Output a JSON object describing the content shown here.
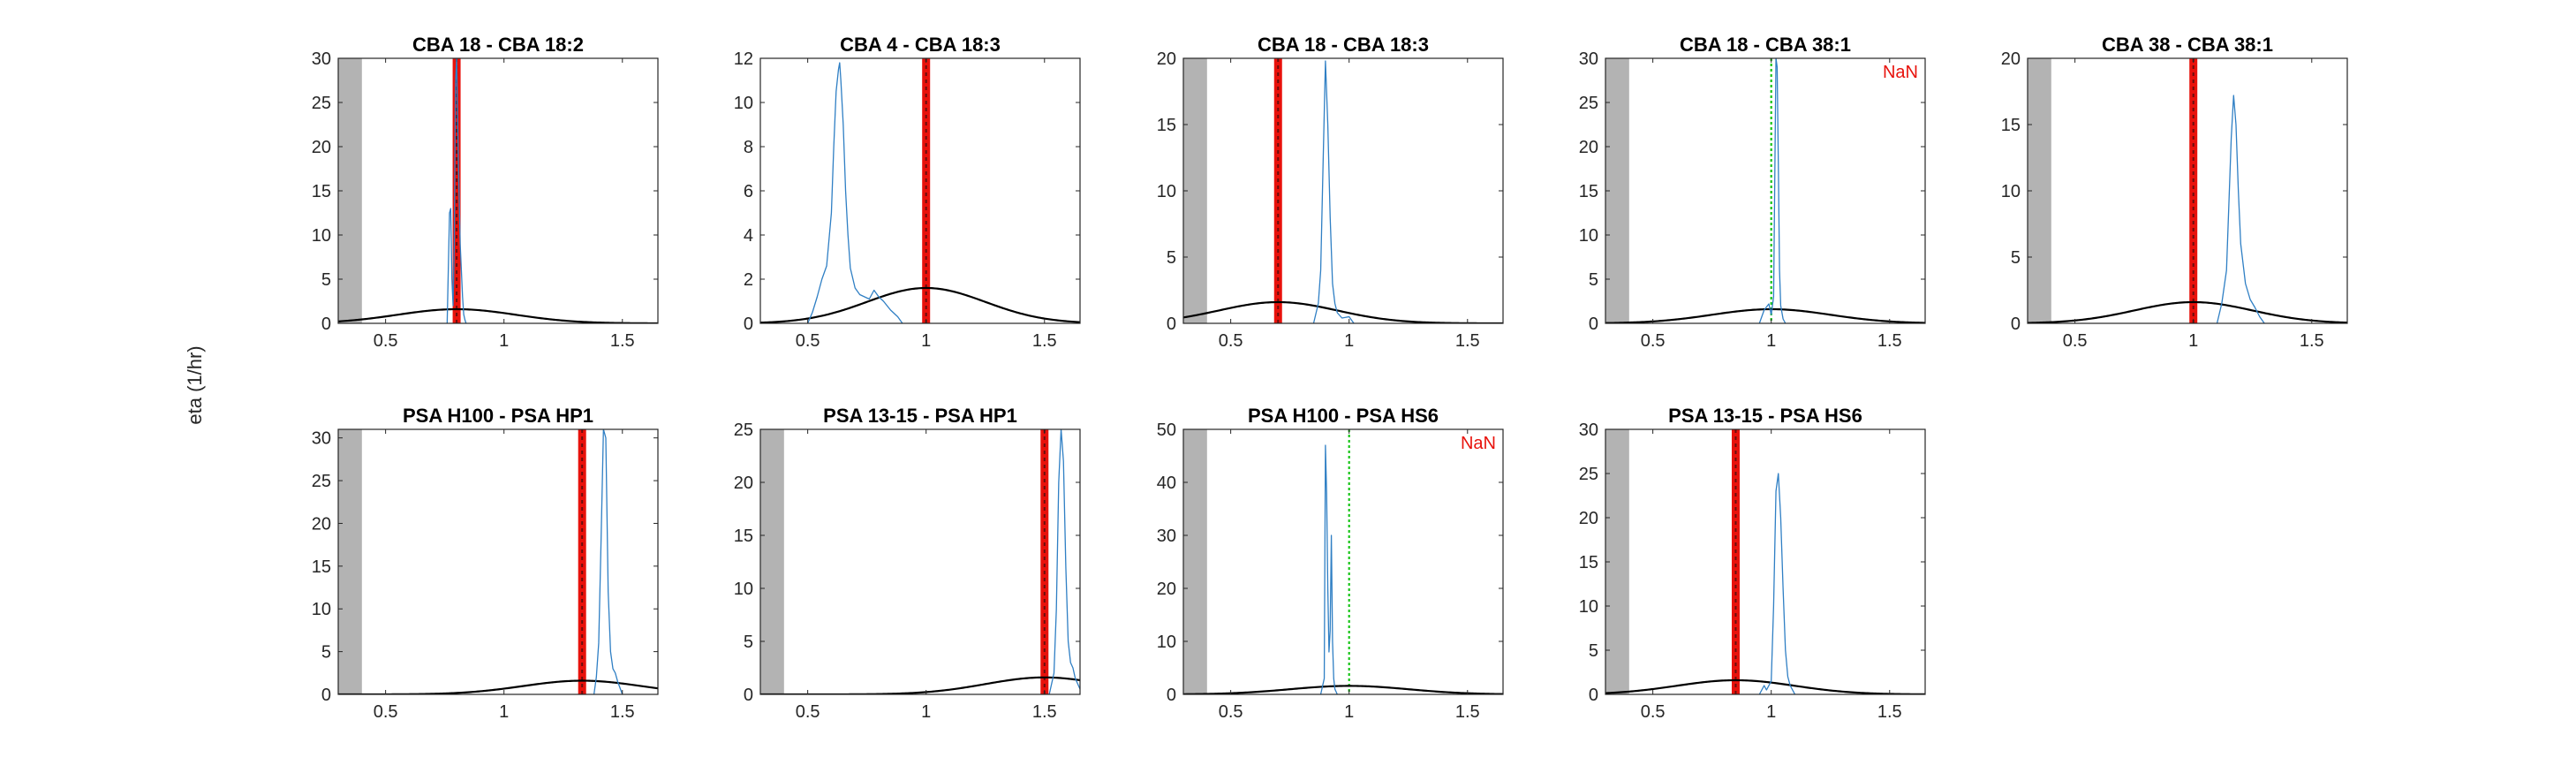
{
  "figure": {
    "ylabel": "eta (1/hr)"
  },
  "colors": {
    "hist": "#2f7fc4",
    "curve": "#000000",
    "red_bar": "#e8120c",
    "red_dash": "#6a0e0e",
    "green": "#19c419",
    "shade": "#b3b3b3",
    "nan": "#e8120c"
  },
  "chart_data": [
    {
      "type": "line",
      "title": "CBA 18 - CBA 18:2",
      "xlim": [
        0.3,
        1.65
      ],
      "ylim": [
        0,
        30
      ],
      "xticks": [
        0.5,
        1,
        1.5
      ],
      "yticks": [
        0,
        5,
        10,
        15,
        20,
        25,
        30
      ],
      "shade_end": 0.4,
      "red_line": 0.8,
      "green_line": null,
      "nan_label": "",
      "normal_curve": {
        "mu": 0.8,
        "sigma": 0.25,
        "peak": 1.6
      },
      "series": [
        {
          "x": [
            0.76,
            0.77,
            0.775,
            0.78,
            0.785,
            0.79,
            0.795,
            0.8,
            0.805,
            0.81,
            0.815,
            0.82,
            0.825,
            0.83,
            0.835,
            0.84
          ],
          "y": [
            0,
            12.5,
            13,
            5,
            2,
            9,
            27,
            30,
            22,
            15,
            9,
            6,
            3,
            1,
            0.4,
            0
          ]
        }
      ]
    },
    {
      "type": "line",
      "title": "CBA 4 - CBA 18:3",
      "xlim": [
        0.3,
        1.65
      ],
      "ylim": [
        0,
        12
      ],
      "xticks": [
        0.5,
        1,
        1.5
      ],
      "yticks": [
        0,
        2,
        4,
        6,
        8,
        10,
        12
      ],
      "shade_end": null,
      "red_line": 1.0,
      "green_line": null,
      "nan_label": "",
      "normal_curve": {
        "mu": 1.0,
        "sigma": 0.25,
        "peak": 1.6
      },
      "series": [
        {
          "x": [
            0.5,
            0.52,
            0.54,
            0.56,
            0.58,
            0.6,
            0.61,
            0.62,
            0.63,
            0.635,
            0.64,
            0.65,
            0.66,
            0.67,
            0.68,
            0.7,
            0.72,
            0.74,
            0.76,
            0.78,
            0.8,
            0.82,
            0.85,
            0.88,
            0.9
          ],
          "y": [
            0,
            0.5,
            1.2,
            2.0,
            2.6,
            5,
            8,
            10.5,
            11.5,
            11.8,
            11,
            9,
            6,
            4,
            2.5,
            1.6,
            1.3,
            1.2,
            1.1,
            1.5,
            1.2,
            1.0,
            0.6,
            0.3,
            0
          ]
        }
      ]
    },
    {
      "type": "line",
      "title": "CBA 18 - CBA 18:3",
      "xlim": [
        0.3,
        1.65
      ],
      "ylim": [
        0,
        20
      ],
      "xticks": [
        0.5,
        1,
        1.5
      ],
      "yticks": [
        0,
        5,
        10,
        15,
        20
      ],
      "shade_end": 0.4,
      "red_line": 0.7,
      "green_line": null,
      "nan_label": "",
      "normal_curve": {
        "mu": 0.7,
        "sigma": 0.25,
        "peak": 1.6
      },
      "series": [
        {
          "x": [
            0.85,
            0.87,
            0.88,
            0.89,
            0.9,
            0.91,
            0.92,
            0.93,
            0.94,
            0.95,
            0.97,
            1.0,
            1.02
          ],
          "y": [
            0,
            1.5,
            4,
            12,
            19.8,
            15,
            8,
            3,
            1.5,
            0.8,
            0.4,
            0.5,
            0
          ]
        }
      ]
    },
    {
      "type": "line",
      "title": "CBA 18 - CBA 38:1",
      "xlim": [
        0.3,
        1.65
      ],
      "ylim": [
        0,
        30
      ],
      "xticks": [
        0.5,
        1,
        1.5
      ],
      "yticks": [
        0,
        5,
        10,
        15,
        20,
        25,
        30
      ],
      "shade_end": 0.4,
      "red_line": null,
      "green_line": 1.0,
      "nan_label": "NaN",
      "normal_curve": {
        "mu": 1.0,
        "sigma": 0.25,
        "peak": 1.6
      },
      "series": [
        {
          "x": [
            0.95,
            0.97,
            0.99,
            1.0,
            1.01,
            1.02,
            1.025,
            1.03,
            1.035,
            1.04,
            1.05,
            1.06
          ],
          "y": [
            0,
            1.5,
            2.2,
            1.0,
            3.0,
            30,
            29,
            18,
            6,
            2,
            0.5,
            0
          ]
        }
      ]
    },
    {
      "type": "line",
      "title": "CBA 38 - CBA 38:1",
      "xlim": [
        0.3,
        1.65
      ],
      "ylim": [
        0,
        20
      ],
      "xticks": [
        0.5,
        1,
        1.5
      ],
      "yticks": [
        0,
        5,
        10,
        15,
        20
      ],
      "shade_end": 0.4,
      "red_line": 1.0,
      "green_line": null,
      "nan_label": "",
      "normal_curve": {
        "mu": 1.0,
        "sigma": 0.25,
        "peak": 1.6
      },
      "series": [
        {
          "x": [
            1.1,
            1.12,
            1.14,
            1.15,
            1.16,
            1.17,
            1.18,
            1.19,
            1.2,
            1.22,
            1.24,
            1.26,
            1.28,
            1.3
          ],
          "y": [
            0,
            1.5,
            4,
            9,
            14,
            17.2,
            15,
            10,
            6,
            3,
            1.8,
            1.2,
            0.5,
            0
          ]
        }
      ]
    },
    {
      "type": "line",
      "title": "PSA H100 - PSA HP1",
      "xlim": [
        0.3,
        1.65
      ],
      "ylim": [
        0,
        31
      ],
      "xticks": [
        0.5,
        1,
        1.5
      ],
      "yticks": [
        0,
        5,
        10,
        15,
        20,
        25,
        30
      ],
      "shade_end": 0.4,
      "red_line": 1.33,
      "green_line": null,
      "nan_label": "",
      "normal_curve": {
        "mu": 1.33,
        "sigma": 0.25,
        "peak": 1.6
      },
      "series": [
        {
          "x": [
            1.38,
            1.39,
            1.4,
            1.41,
            1.42,
            1.43,
            1.44,
            1.45,
            1.46,
            1.47,
            1.48,
            1.5
          ],
          "y": [
            0,
            2,
            6,
            18,
            31,
            30,
            12,
            5,
            3,
            2.5,
            1.5,
            0
          ]
        }
      ]
    },
    {
      "type": "line",
      "title": "PSA 13-15 - PSA HP1",
      "xlim": [
        0.3,
        1.65
      ],
      "ylim": [
        0,
        25
      ],
      "xticks": [
        0.5,
        1,
        1.5
      ],
      "yticks": [
        0,
        5,
        10,
        15,
        20,
        25
      ],
      "shade_end": 0.4,
      "red_line": 1.5,
      "green_line": null,
      "nan_label": "",
      "normal_curve": {
        "mu": 1.5,
        "sigma": 0.25,
        "peak": 1.6
      },
      "series": [
        {
          "x": [
            1.52,
            1.54,
            1.55,
            1.56,
            1.57,
            1.58,
            1.59,
            1.6,
            1.61,
            1.62,
            1.63,
            1.65
          ],
          "y": [
            0,
            2,
            8,
            20,
            25,
            22,
            12,
            5,
            3,
            2.5,
            1.5,
            0.5
          ]
        }
      ]
    },
    {
      "type": "line",
      "title": "PSA H100 - PSA HS6",
      "xlim": [
        0.3,
        1.65
      ],
      "ylim": [
        0,
        50
      ],
      "xticks": [
        0.5,
        1,
        1.5
      ],
      "yticks": [
        0,
        10,
        20,
        30,
        40,
        50
      ],
      "shade_end": 0.4,
      "red_line": null,
      "green_line": 1.0,
      "nan_label": "NaN",
      "normal_curve": {
        "mu": 1.0,
        "sigma": 0.25,
        "peak": 1.6
      },
      "series": [
        {
          "x": [
            0.88,
            0.895,
            0.9,
            0.905,
            0.91,
            0.915,
            0.92,
            0.925,
            0.93,
            0.935,
            0.94,
            0.95
          ],
          "y": [
            0,
            3,
            47,
            38,
            20,
            8,
            12,
            30,
            10,
            3,
            1,
            0
          ]
        }
      ]
    },
    {
      "type": "line",
      "title": "PSA 13-15 - PSA HS6",
      "xlim": [
        0.3,
        1.65
      ],
      "ylim": [
        0,
        30
      ],
      "xticks": [
        0.5,
        1,
        1.5
      ],
      "yticks": [
        0,
        5,
        10,
        15,
        20,
        25,
        30
      ],
      "shade_end": 0.4,
      "red_line": 0.85,
      "green_line": null,
      "nan_label": "",
      "normal_curve": {
        "mu": 0.85,
        "sigma": 0.25,
        "peak": 1.6
      },
      "series": [
        {
          "x": [
            0.95,
            0.97,
            0.98,
            1.0,
            1.01,
            1.02,
            1.03,
            1.04,
            1.05,
            1.06,
            1.07,
            1.08,
            1.1
          ],
          "y": [
            0,
            1,
            0.5,
            1.5,
            10,
            23,
            25,
            20,
            12,
            5,
            2,
            1,
            0
          ]
        }
      ]
    }
  ]
}
